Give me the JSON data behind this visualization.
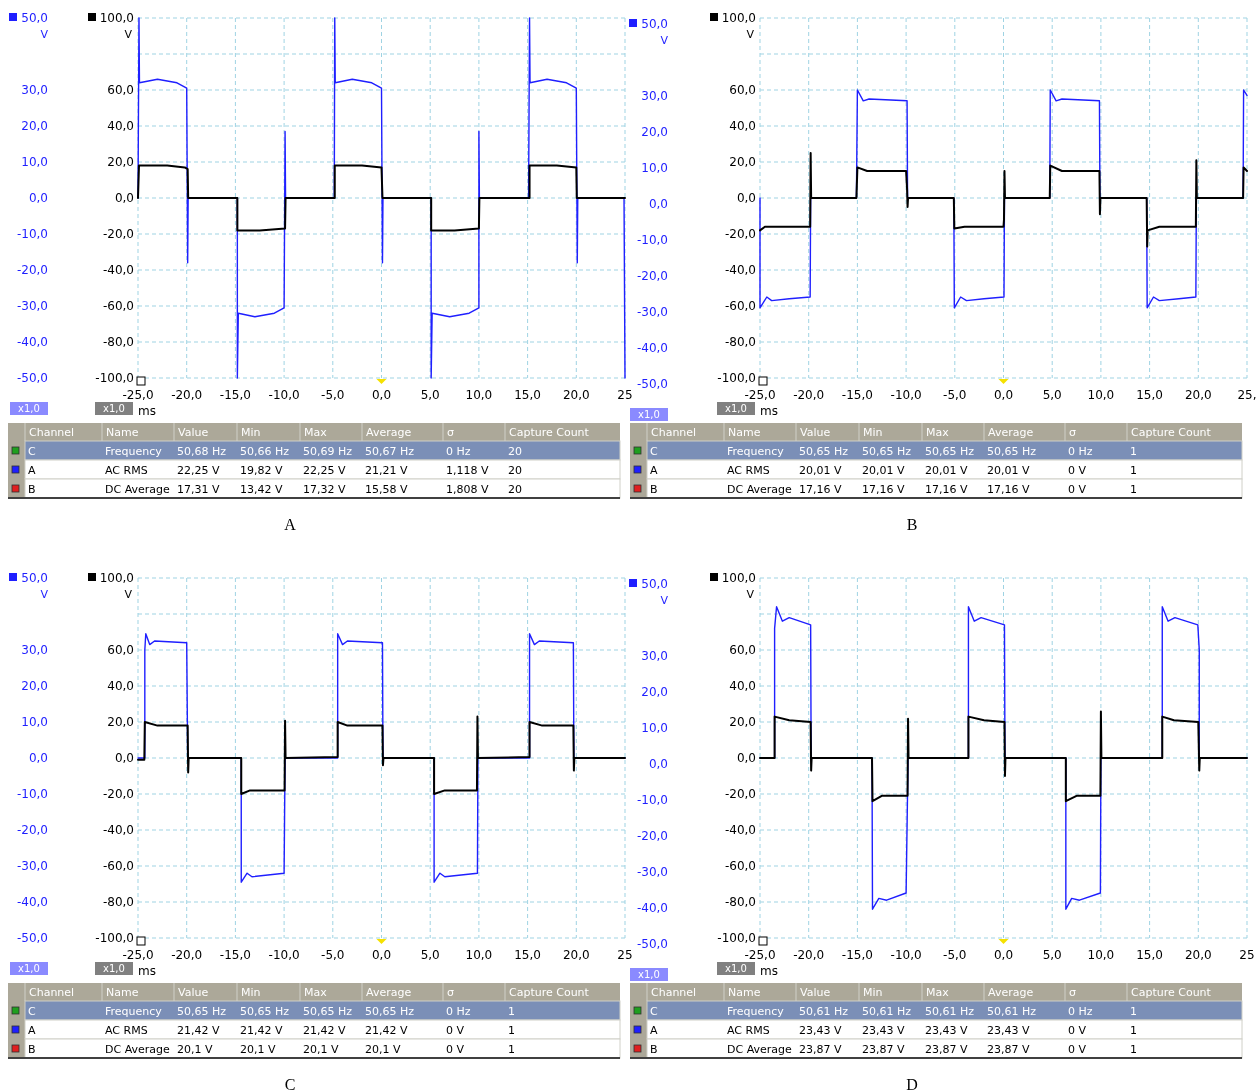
{
  "chart_data": [
    {
      "type": "line",
      "xlim": [
        -25,
        25
      ],
      "xticks": [
        {
          "value": -25,
          "label": "-25,0"
        },
        {
          "value": -20,
          "label": "-20,0"
        },
        {
          "value": -15,
          "label": "-15,0"
        },
        {
          "value": -10,
          "label": "-10,0"
        },
        {
          "value": -5,
          "label": "-5,0"
        },
        {
          "value": 0,
          "label": "0,0"
        },
        {
          "value": 5,
          "label": "5,0"
        },
        {
          "value": 10,
          "label": "10,0"
        },
        {
          "value": 15,
          "label": "15,0"
        },
        {
          "value": 20,
          "label": "20,0"
        },
        {
          "value": 25,
          "label": "25"
        }
      ],
      "xlabel": "ms",
      "y3lim": [
        -100,
        100
      ],
      "y3ticks": [
        {
          "value": -100,
          "label": "-100,0"
        },
        {
          "value": -80,
          "label": "-80,0"
        },
        {
          "value": -60,
          "label": "-60,0"
        },
        {
          "value": -40,
          "label": "-40,0"
        },
        {
          "value": -20,
          "label": "-20,0"
        },
        {
          "value": 0,
          "label": "0,0"
        },
        {
          "value": 20,
          "label": "20,0"
        },
        {
          "value": 40,
          "label": "40,0"
        },
        {
          "value": 60,
          "label": "60,0"
        },
        {
          "value": 80,
          "label": null
        },
        {
          "value": 100,
          "label": "100,0"
        }
      ],
      "y3label": "V",
      "ylim": [
        -50,
        50
      ],
      "yticks": [
        {
          "value": -50,
          "label": "-50,0"
        },
        {
          "value": -40,
          "label": "-40,0"
        },
        {
          "value": -30,
          "label": "-30,0"
        },
        {
          "value": -20,
          "label": "-20,0"
        },
        {
          "value": -10,
          "label": "-10,0"
        },
        {
          "value": 0,
          "label": "0,0"
        },
        {
          "value": 10,
          "label": "10,0"
        },
        {
          "value": 20,
          "label": "20,0"
        },
        {
          "value": 30,
          "label": "30,0"
        },
        {
          "value": 50,
          "label": "50,0"
        }
      ],
      "ylabel": "V",
      "y2lim": [
        -50,
        50
      ],
      "y2ticks": [
        {
          "value": -50,
          "label": "-50,0"
        },
        {
          "value": -40,
          "label": "-40,0"
        },
        {
          "value": -30,
          "label": "-30,0"
        },
        {
          "value": -20,
          "label": "-20,0"
        },
        {
          "value": -10,
          "label": "-10,0"
        },
        {
          "value": 0,
          "label": "0,0"
        },
        {
          "value": 10,
          "label": "10,0"
        },
        {
          "value": 20,
          "label": "20,0"
        },
        {
          "value": 30,
          "label": "30,0"
        },
        {
          "value": 50,
          "label": "50,0"
        }
      ],
      "y2label": "V",
      "grid": true,
      "annotations": [
        "x1,0",
        "x1,0",
        "x1,0"
      ],
      "series": [
        {
          "color": "#1f1fff",
          "x": [
            -25,
            -24.9,
            -24.85,
            -23,
            -21,
            -20,
            -19.9,
            -19.85,
            -14.8,
            -14.8,
            -14.7,
            -13,
            -11,
            -10,
            -9.9,
            -9.85,
            -4.85,
            -4.8,
            -4.75,
            -3,
            -1,
            0,
            0.1,
            0.15,
            5.1,
            5.1,
            5.2,
            7,
            9,
            10,
            10,
            10.05,
            15.1,
            15.2,
            15.25,
            17,
            19,
            20,
            20.1,
            20.15,
            24.9,
            25
          ],
          "values": [
            0,
            50,
            32,
            33,
            32,
            30.5,
            -18,
            0,
            0,
            -50,
            -32,
            -33,
            -32,
            -30.5,
            18.5,
            0,
            0,
            50,
            32,
            33,
            32,
            30.5,
            -18,
            0,
            0,
            -50,
            -32,
            -33,
            -32,
            -30.5,
            18.5,
            0,
            0,
            50,
            32,
            33,
            32,
            30.5,
            -18,
            0,
            0,
            -50
          ]
        },
        {
          "color": "#000000",
          "axis": "y3",
          "x": [
            -25,
            -24.9,
            -22,
            -20.2,
            -19.9,
            -19.85,
            -14.8,
            -14.8,
            -12.5,
            -9.9,
            -9.85,
            -4.8,
            -4.8,
            -2,
            0,
            0.1,
            5.1,
            5.1,
            7.5,
            10,
            10.05,
            15.2,
            15.2,
            18,
            20,
            20.05,
            25
          ],
          "values": [
            0,
            18,
            18,
            17,
            16,
            0,
            0,
            -18,
            -18,
            -17,
            0,
            0,
            18,
            18,
            17,
            0,
            0,
            -18,
            -18,
            -17,
            0,
            0,
            18,
            18,
            17,
            0,
            0
          ]
        }
      ]
    },
    {
      "type": "other",
      "title": "A",
      "categories": [
        "Channel",
        "Name",
        "Value",
        "Min",
        "Max",
        "Average",
        "σ",
        "Capture Count"
      ],
      "annotations": [
        "C",
        "Frequency",
        "50,68 Hz",
        "50,66 Hz",
        "50,69 Hz",
        "50,67 Hz",
        "0 Hz",
        "20",
        "A",
        "AC RMS",
        "22,25 V",
        "19,82 V",
        "22,25 V",
        "21,21 V",
        "1,118 V",
        "20",
        "B",
        "DC Average",
        "17,31 V",
        "13,42 V",
        "17,32 V",
        "15,58 V",
        "1,808 V",
        "20"
      ]
    },
    {
      "type": "line",
      "xlim": [
        -25,
        25
      ],
      "xticks": [
        {
          "value": -25,
          "label": "-25,0"
        },
        {
          "value": -20,
          "label": "-20,0"
        },
        {
          "value": -15,
          "label": "-15,0"
        },
        {
          "value": -10,
          "label": "-10,0"
        },
        {
          "value": -5,
          "label": "-5,0"
        },
        {
          "value": 0,
          "label": "0,0"
        },
        {
          "value": 5,
          "label": "5,0"
        },
        {
          "value": 10,
          "label": "10,0"
        },
        {
          "value": 15,
          "label": "15,0"
        },
        {
          "value": 20,
          "label": "20,0"
        },
        {
          "value": 25,
          "label": "25,"
        }
      ],
      "xlabel": "ms",
      "ylim": [
        -100,
        100
      ],
      "yticks": [
        {
          "value": -100,
          "label": "-100,0"
        },
        {
          "value": -80,
          "label": "-80,0"
        },
        {
          "value": -60,
          "label": "-60,0"
        },
        {
          "value": -40,
          "label": "-40,0"
        },
        {
          "value": -20,
          "label": "-20,0"
        },
        {
          "value": 0,
          "label": "0,0"
        },
        {
          "value": 20,
          "label": "20,0"
        },
        {
          "value": 40,
          "label": "40,0"
        },
        {
          "value": 60,
          "label": "60,0"
        },
        {
          "value": 80,
          "label": null
        },
        {
          "value": 100,
          "label": "100,0"
        }
      ],
      "ylabel": "V",
      "grid": true,
      "annotations": [
        "x1,0"
      ],
      "series": [
        {
          "color": "#1f1fff",
          "x": [
            -25,
            -25,
            -24.3,
            -23.8,
            -22,
            -19.85,
            -19.8,
            -15.1,
            -15,
            -14.4,
            -13.8,
            -9.9,
            -9.85,
            -5.1,
            -5.05,
            -4.4,
            -3.8,
            -2,
            0.05,
            0.1,
            4.75,
            4.8,
            5.4,
            6,
            9.85,
            9.9,
            14.7,
            14.75,
            15.4,
            16,
            18,
            19.75,
            19.8,
            24.6,
            24.65,
            25
          ],
          "values": [
            0,
            -61,
            -55,
            -57,
            -56,
            -55,
            0,
            0,
            60,
            54,
            55,
            54,
            0,
            0,
            -61,
            -55,
            -57,
            -56,
            -55,
            0,
            0,
            60,
            54,
            55,
            54,
            0,
            0,
            -61,
            -55,
            -57,
            -56,
            -55,
            0,
            0,
            60,
            57
          ]
        },
        {
          "color": "#000000",
          "x": [
            -25,
            -24.5,
            -22,
            -19.85,
            -19.8,
            -19.75,
            -15.1,
            -15,
            -14,
            -10,
            -9.9,
            -9.85,
            -9.8,
            -5.1,
            -5.05,
            -4,
            0,
            0.05,
            0.1,
            0.15,
            4.75,
            4.8,
            6,
            9.85,
            9.9,
            9.95,
            14.7,
            14.75,
            14.8,
            16,
            19.75,
            19.8,
            19.85,
            24.6,
            24.65,
            25
          ],
          "values": [
            -18,
            -16,
            -16,
            -16,
            25,
            0,
            0,
            17,
            15,
            15,
            5,
            -5,
            0,
            0,
            -17,
            -16,
            -16,
            -12,
            15,
            0,
            0,
            18,
            15,
            15,
            -9,
            0,
            0,
            -27,
            -18,
            -16,
            -16,
            21,
            0,
            0,
            17,
            15
          ]
        }
      ]
    },
    {
      "type": "other",
      "title": "B",
      "categories": [
        "Channel",
        "Name",
        "Value",
        "Min",
        "Max",
        "Average",
        "σ",
        "Capture Count"
      ],
      "annotations": [
        "C",
        "Frequency",
        "50,65 Hz",
        "50,65 Hz",
        "50,65 Hz",
        "50,65 Hz",
        "0 Hz",
        "1",
        "A",
        "AC RMS",
        "20,01 V",
        "20,01 V",
        "20,01 V",
        "20,01 V",
        "0 V",
        "1",
        "B",
        "DC Average",
        "17,16 V",
        "17,16 V",
        "17,16 V",
        "17,16 V",
        "0 V",
        "1"
      ]
    },
    {
      "type": "line",
      "xlim": [
        -25,
        25
      ],
      "xticks": [
        {
          "value": -25,
          "label": "-25,0"
        },
        {
          "value": -20,
          "label": "-20,0"
        },
        {
          "value": -15,
          "label": "-15,0"
        },
        {
          "value": -10,
          "label": "-10,0"
        },
        {
          "value": -5,
          "label": "-5,0"
        },
        {
          "value": 0,
          "label": "0,0"
        },
        {
          "value": 5,
          "label": "5,0"
        },
        {
          "value": 10,
          "label": "10,0"
        },
        {
          "value": 15,
          "label": "15,0"
        },
        {
          "value": 20,
          "label": "20,0"
        },
        {
          "value": 25,
          "label": "25"
        }
      ],
      "xlabel": "ms",
      "y3lim": [
        -100,
        100
      ],
      "y3ticks": [
        {
          "value": -100,
          "label": "-100,0"
        },
        {
          "value": -80,
          "label": "-80,0"
        },
        {
          "value": -60,
          "label": "-60,0"
        },
        {
          "value": -40,
          "label": "-40,0"
        },
        {
          "value": -20,
          "label": "-20,0"
        },
        {
          "value": 0,
          "label": "0,0"
        },
        {
          "value": 20,
          "label": "20,0"
        },
        {
          "value": 40,
          "label": "40,0"
        },
        {
          "value": 60,
          "label": "60,0"
        },
        {
          "value": 80,
          "label": null
        },
        {
          "value": 100,
          "label": "100,0"
        }
      ],
      "y3label": "V",
      "ylim": [
        -50,
        50
      ],
      "yticks": [
        {
          "value": -50,
          "label": "-50,0"
        },
        {
          "value": -40,
          "label": "-40,0"
        },
        {
          "value": -30,
          "label": "-30,0"
        },
        {
          "value": -20,
          "label": "-20,0"
        },
        {
          "value": -10,
          "label": "-10,0"
        },
        {
          "value": 0,
          "label": "0,0"
        },
        {
          "value": 10,
          "label": "10,0"
        },
        {
          "value": 20,
          "label": "20,0"
        },
        {
          "value": 30,
          "label": "30,0"
        },
        {
          "value": 50,
          "label": "50,0"
        }
      ],
      "ylabel": "V",
      "y2lim": [
        -50,
        50
      ],
      "y2ticks": [
        {
          "value": -50,
          "label": "-50,0"
        },
        {
          "value": -40,
          "label": "-40,0"
        },
        {
          "value": -30,
          "label": "-30,0"
        },
        {
          "value": -20,
          "label": "-20,0"
        },
        {
          "value": -10,
          "label": "-10,0"
        },
        {
          "value": 0,
          "label": "0,0"
        },
        {
          "value": 10,
          "label": "10,0"
        },
        {
          "value": 20,
          "label": "20,0"
        },
        {
          "value": 30,
          "label": "30,0"
        },
        {
          "value": 50,
          "label": "50,0"
        }
      ],
      "y2label": "V",
      "grid": true,
      "annotations": [
        "x1,0",
        "x1,0",
        "x1,0"
      ],
      "series": [
        {
          "color": "#1f1fff",
          "x": [
            -25,
            -24.3,
            -24.3,
            -24.2,
            -23.8,
            -23.3,
            -20,
            -19.9,
            -14.4,
            -14.4,
            -13.8,
            -13.3,
            -10,
            -9.9,
            -4.5,
            -4.5,
            -4,
            -3.5,
            0.1,
            0.15,
            5.4,
            5.4,
            6,
            6.5,
            9.85,
            9.9,
            15.2,
            15.2,
            15.7,
            16.2,
            19.7,
            19.75,
            25
          ],
          "values": [
            0,
            0,
            30,
            34.5,
            31.5,
            32.5,
            32,
            0,
            0,
            -34.5,
            -32,
            -33,
            -32,
            0,
            0,
            34.5,
            31.5,
            32.5,
            32,
            0,
            0,
            -34.5,
            -32,
            -33,
            -32,
            0,
            0,
            34.5,
            31.5,
            32.5,
            32,
            0,
            0
          ]
        },
        {
          "color": "#000000",
          "axis": "y3",
          "x": [
            -25,
            -24.35,
            -24.3,
            -23,
            -19.9,
            -19.85,
            -19.8,
            -14.4,
            -14.4,
            -13.5,
            -9.95,
            -9.9,
            -9.85,
            -4.5,
            -4.5,
            -3.5,
            0.1,
            0.15,
            0.2,
            5.4,
            5.4,
            6.5,
            9.8,
            9.85,
            9.9,
            15.2,
            15.2,
            16.5,
            19.7,
            19.75,
            19.8,
            25
          ],
          "values": [
            -1,
            -1,
            20,
            18,
            18,
            -8,
            0,
            0,
            -20,
            -18,
            -18,
            20.7,
            0,
            0.5,
            20,
            18,
            18,
            -4,
            0,
            0,
            -20,
            -18,
            -18,
            23,
            0,
            0.5,
            20,
            18,
            18,
            -7,
            0,
            0
          ]
        }
      ]
    },
    {
      "type": "other",
      "title": "C",
      "categories": [
        "Channel",
        "Name",
        "Value",
        "Min",
        "Max",
        "Average",
        "σ",
        "Capture Count"
      ],
      "annotations": [
        "C",
        "Frequency",
        "50,65 Hz",
        "50,65 Hz",
        "50,65 Hz",
        "50,65 Hz",
        "0 Hz",
        "1",
        "A",
        "AC RMS",
        "21,42 V",
        "21,42 V",
        "21,42 V",
        "21,42 V",
        "0 V",
        "1",
        "B",
        "DC Average",
        "20,1 V",
        "20,1 V",
        "20,1 V",
        "20,1 V",
        "0 V",
        "1"
      ]
    },
    {
      "type": "line",
      "xlim": [
        -25,
        25
      ],
      "xticks": [
        {
          "value": -25,
          "label": "-25,0"
        },
        {
          "value": -20,
          "label": "-20,0"
        },
        {
          "value": -15,
          "label": "-15,0"
        },
        {
          "value": -10,
          "label": "-10,0"
        },
        {
          "value": -5,
          "label": "-5,0"
        },
        {
          "value": 0,
          "label": "0,0"
        },
        {
          "value": 5,
          "label": "5,0"
        },
        {
          "value": 10,
          "label": "10,0"
        },
        {
          "value": 15,
          "label": "15,0"
        },
        {
          "value": 20,
          "label": "20,0"
        },
        {
          "value": 25,
          "label": "25"
        }
      ],
      "xlabel": "ms",
      "ylim": [
        -100,
        100
      ],
      "yticks": [
        {
          "value": -100,
          "label": "-100,0"
        },
        {
          "value": -80,
          "label": "-80,0"
        },
        {
          "value": -60,
          "label": "-60,0"
        },
        {
          "value": -40,
          "label": "-40,0"
        },
        {
          "value": -20,
          "label": "-20,0"
        },
        {
          "value": 0,
          "label": "0,0"
        },
        {
          "value": 20,
          "label": "20,0"
        },
        {
          "value": 40,
          "label": "40,0"
        },
        {
          "value": 60,
          "label": "60,0"
        },
        {
          "value": 80,
          "label": null
        },
        {
          "value": 100,
          "label": "100,0"
        }
      ],
      "ylabel": "V",
      "grid": true,
      "annotations": [
        "x1,0"
      ],
      "series": [
        {
          "color": "#1f1fff",
          "x": [
            -25,
            -23.5,
            -23.5,
            -23.3,
            -22.7,
            -22,
            -19.8,
            -19.75,
            -13.5,
            -13.45,
            -12.8,
            -12,
            -10,
            -9.8,
            -3.6,
            -3.6,
            -3,
            -2.3,
            0.1,
            0.15,
            6.4,
            6.4,
            7,
            7.8,
            9.95,
            10,
            16.3,
            16.3,
            16.9,
            17.6,
            19.95,
            20.1,
            20.1,
            25
          ],
          "values": [
            0,
            0,
            72,
            84,
            76,
            78,
            74,
            0,
            0,
            -84,
            -78,
            -79,
            -75,
            0,
            0,
            84,
            76,
            78,
            74,
            0,
            0,
            -84,
            -78,
            -79,
            -75,
            0,
            0,
            84,
            76,
            78,
            74,
            60,
            0,
            0
          ]
        },
        {
          "color": "#000000",
          "x": [
            -25,
            -23.5,
            -23.5,
            -22,
            -19.8,
            -19.75,
            -19.7,
            -13.5,
            -13.45,
            -12.5,
            -9.85,
            -9.8,
            -9.75,
            -3.6,
            -3.6,
            -2,
            0.1,
            0.15,
            0.2,
            6.4,
            6.4,
            7.5,
            9.95,
            10,
            10.05,
            16.3,
            16.3,
            17.5,
            20,
            20.1,
            20.15,
            25
          ],
          "values": [
            0,
            0,
            23,
            21,
            20,
            -7,
            0,
            0,
            -24,
            -21,
            -21,
            21.8,
            0,
            0,
            23,
            21,
            20,
            -10,
            0,
            0,
            -24,
            -21,
            -21,
            25.8,
            0,
            0,
            23,
            21,
            20,
            -7,
            0,
            0
          ]
        }
      ]
    },
    {
      "type": "other",
      "title": "D",
      "categories": [
        "Channel",
        "Name",
        "Value",
        "Min",
        "Max",
        "Average",
        "σ",
        "Capture Count"
      ],
      "annotations": [
        "C",
        "Frequency",
        "50,61 Hz",
        "50,61 Hz",
        "50,61 Hz",
        "50,61 Hz",
        "0 Hz",
        "1",
        "A",
        "AC RMS",
        "23,43 V",
        "23,43 V",
        "23,43 V",
        "23,43 V",
        "0 V",
        "1",
        "B",
        "DC Average",
        "23,87 V",
        "23,87 V",
        "23,87 V",
        "23,87 V",
        "0 V",
        "1"
      ]
    }
  ]
}
